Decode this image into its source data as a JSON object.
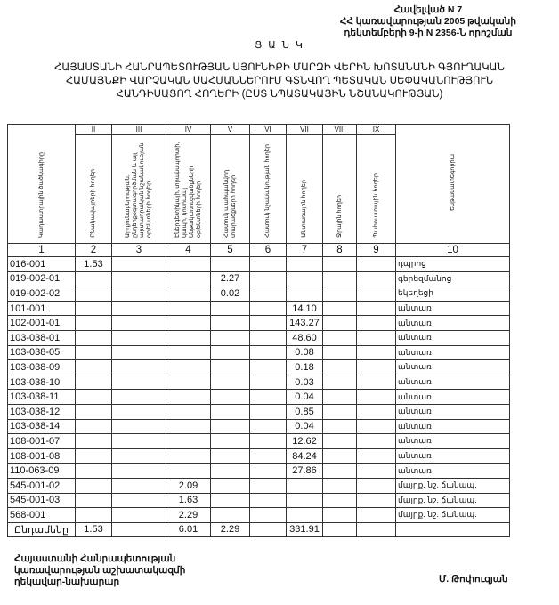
{
  "annex": {
    "line1": "Հավելված N 7",
    "line2": "ՀՀ կառավարության 2005 թվականի",
    "line3": "դեկտեմբերի 9-ի N 2356-Ն որոշման"
  },
  "title": "Ց Ա Ն Կ",
  "subtitle": {
    "line1": "ՀԱՅԱՍՏԱՆԻ ՀԱՆՐԱՊԵՏՈՒԹՅԱՆ ՍՅՈՒՆԻՔԻ ՄԱՐԶԻ ՎԵՐԻՆ ԽՈՏԱՆԱՆԻ ԳՅՈՒՂԱԿԱՆ",
    "line2": "ՀԱՄԱՅՆՔԻ ՎԱՐՉԱԿԱՆ ՍԱՀՄԱՆՆԵՐՈՒՄ  ԳՏՆՎՈՂ  ՊԵՏԱԿԱՆ ՍԵՓԱԿԱՆՈՒԹՅՈՒՆ",
    "line3": "ՀԱՆԴԻՍԱՑՈՂ ՀՈՂԵՐԻ   (ԸՍՏ ՆՊԱՏԱԿԱՅԻՆ ՆՇԱՆԱԿՈՒԹՅԱՆ)"
  },
  "table": {
    "roman": [
      "",
      "II",
      "III",
      "IV",
      "V",
      "VI",
      "VII",
      "VIII",
      "IX",
      ""
    ],
    "headers": [
      "Կադաստրային ծածկագիրը",
      "Բնակավայրերի հողեր",
      "Արդյունաբերության, ընդերքօգտագործման և այլ արտադրական նշանակության օբյեկտների հողեր",
      "Էներգետիկայի, տրանսպորտի, կապի, կոմունալ ենթակառուցվածքների օբյեկտների հողեր",
      "Հատուկ պահպանվող տարածքների հողեր",
      "Հատուկ նշանակության հողեր",
      "Անտառային հողեր",
      "Ջրային հողեր",
      "Պահուստային հողեր",
      "Ենթակատեգորիա"
    ],
    "col_numbers": [
      "1",
      "2",
      "3",
      "4",
      "5",
      "6",
      "7",
      "8",
      "9",
      "10"
    ],
    "rows": [
      [
        "016-001",
        "1.53",
        "",
        "",
        "",
        "",
        "",
        "",
        "",
        "դպրոց"
      ],
      [
        "019-002-01",
        "",
        "",
        "",
        "2.27",
        "",
        "",
        "",
        "",
        "գերեզմանոց"
      ],
      [
        "019-002-02",
        "",
        "",
        "",
        "0.02",
        "",
        "",
        "",
        "",
        "եկեղեցի"
      ],
      [
        "101-001",
        "",
        "",
        "",
        "",
        "",
        "14.10",
        "",
        "",
        "անտառ"
      ],
      [
        "102-001-01",
        "",
        "",
        "",
        "",
        "",
        "143.27",
        "",
        "",
        "անտառ"
      ],
      [
        "103-038-01",
        "",
        "",
        "",
        "",
        "",
        "48.60",
        "",
        "",
        "անտառ"
      ],
      [
        "103-038-05",
        "",
        "",
        "",
        "",
        "",
        "0.08",
        "",
        "",
        "անտառ"
      ],
      [
        "103-038-09",
        "",
        "",
        "",
        "",
        "",
        "0.18",
        "",
        "",
        "անտառ"
      ],
      [
        "103-038-10",
        "",
        "",
        "",
        "",
        "",
        "0.03",
        "",
        "",
        "անտառ"
      ],
      [
        "103-038-11",
        "",
        "",
        "",
        "",
        "",
        "0.04",
        "",
        "",
        "անտառ"
      ],
      [
        "103-038-12",
        "",
        "",
        "",
        "",
        "",
        "0.85",
        "",
        "",
        "անտառ"
      ],
      [
        "103-038-14",
        "",
        "",
        "",
        "",
        "",
        "0.04",
        "",
        "",
        "անտառ"
      ],
      [
        "108-001-07",
        "",
        "",
        "",
        "",
        "",
        "12.62",
        "",
        "",
        "անտառ"
      ],
      [
        "108-001-08",
        "",
        "",
        "",
        "",
        "",
        "84.24",
        "",
        "",
        "անտառ"
      ],
      [
        "110-063-09",
        "",
        "",
        "",
        "",
        "",
        "27.86",
        "",
        "",
        "անտառ"
      ],
      [
        "545-001-02",
        "",
        "",
        "2.09",
        "",
        "",
        "",
        "",
        "",
        "մայրք. նշ. ճանապ."
      ],
      [
        "545-001-03",
        "",
        "",
        "1.63",
        "",
        "",
        "",
        "",
        "",
        "մայրք. նշ. ճանապ."
      ],
      [
        "568-001",
        "",
        "",
        "2.29",
        "",
        "",
        "",
        "",
        "",
        "մայրք. նշ. ճանապ."
      ]
    ],
    "total": [
      "Ընդամենը",
      "1.53",
      "",
      "6.01",
      "2.29",
      "",
      "331.91",
      "",
      "",
      ""
    ]
  },
  "footer": {
    "line1": "Հայաստանի Հանրապետության",
    "line2": "կառավարության աշխատակազմի",
    "line3": "ղեկավար-նախարար",
    "signature": "Մ. Թոփուզյան"
  }
}
